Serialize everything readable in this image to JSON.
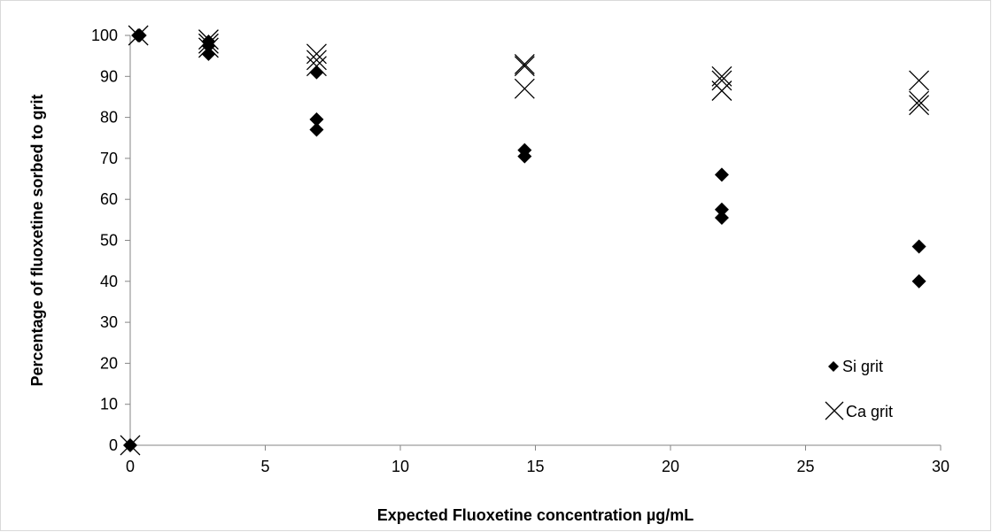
{
  "chart_data": {
    "type": "scatter",
    "title": "",
    "xlabel": "Expected Fluoxetine concentration µg/mL",
    "ylabel": "Percentage of fluoxetine sorbed to grit",
    "xlim": [
      0,
      30
    ],
    "ylim": [
      0,
      100
    ],
    "x_ticks": [
      "0",
      "5",
      "10",
      "15",
      "20",
      "25",
      "30"
    ],
    "y_ticks": [
      "0",
      "10",
      "20",
      "30",
      "40",
      "50",
      "60",
      "70",
      "80",
      "90",
      "100"
    ],
    "grid": false,
    "legend_position": "bottom-right",
    "series": [
      {
        "name": "Si grit",
        "marker": "diamond",
        "color": "#000000",
        "points": [
          {
            "x": 0,
            "y": 0
          },
          {
            "x": 0.3,
            "y": 100
          },
          {
            "x": 0.35,
            "y": 100
          },
          {
            "x": 2.9,
            "y": 95.5
          },
          {
            "x": 2.9,
            "y": 97.5
          },
          {
            "x": 2.9,
            "y": 98.5
          },
          {
            "x": 6.9,
            "y": 91
          },
          {
            "x": 6.9,
            "y": 79.5
          },
          {
            "x": 6.9,
            "y": 77
          },
          {
            "x": 14.6,
            "y": 72
          },
          {
            "x": 14.6,
            "y": 70.5
          },
          {
            "x": 21.9,
            "y": 66
          },
          {
            "x": 21.9,
            "y": 57.5
          },
          {
            "x": 21.9,
            "y": 55.5
          },
          {
            "x": 29.2,
            "y": 48.5
          },
          {
            "x": 29.2,
            "y": 40
          }
        ]
      },
      {
        "name": "Ca grit",
        "marker": "x",
        "color": "#000000",
        "points": [
          {
            "x": 0,
            "y": 0
          },
          {
            "x": 0.3,
            "y": 100
          },
          {
            "x": 2.9,
            "y": 99
          },
          {
            "x": 2.9,
            "y": 98
          },
          {
            "x": 2.9,
            "y": 97
          },
          {
            "x": 6.9,
            "y": 95.5
          },
          {
            "x": 6.9,
            "y": 94
          },
          {
            "x": 6.9,
            "y": 92.5
          },
          {
            "x": 14.6,
            "y": 93
          },
          {
            "x": 14.6,
            "y": 92.5
          },
          {
            "x": 14.6,
            "y": 87
          },
          {
            "x": 21.9,
            "y": 90
          },
          {
            "x": 21.9,
            "y": 89
          },
          {
            "x": 21.9,
            "y": 86.5
          },
          {
            "x": 29.2,
            "y": 89
          },
          {
            "x": 29.2,
            "y": 84
          },
          {
            "x": 29.2,
            "y": 83
          }
        ]
      }
    ]
  }
}
